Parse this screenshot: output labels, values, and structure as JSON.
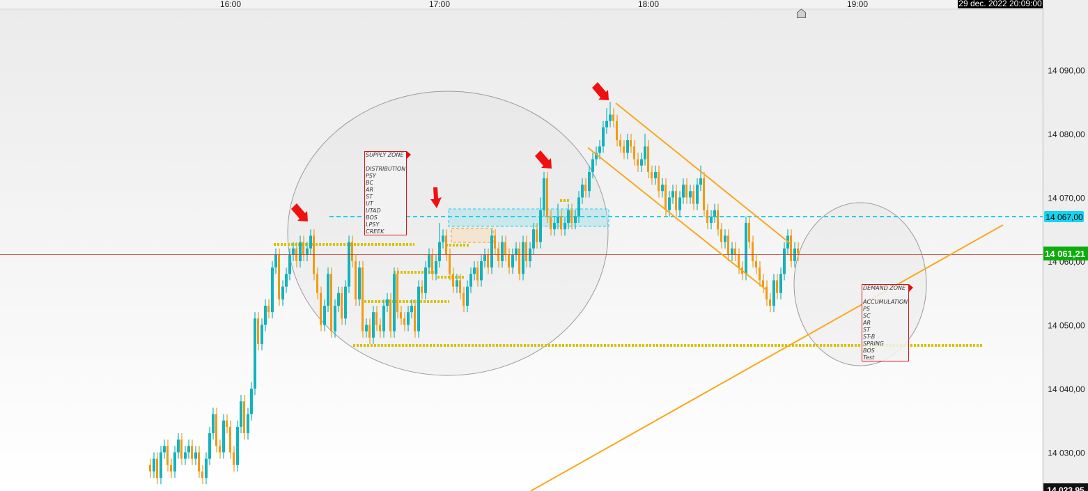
{
  "header": {
    "datetime_label": "29 dec. 2022 20:09:00"
  },
  "colors": {
    "up_candle": "#12b3bd",
    "down_candle": "#f29a12",
    "price_line": "#d22a1e",
    "current_price_bg": "#0aad0a",
    "level_bg": "#16d4f0",
    "level_line": "#16d4f0",
    "channel_lines": "#fca61c",
    "support_dotted": "#d8c000",
    "arrows": "#f01010",
    "zone_box_border": "#e01010"
  },
  "chart_data": {
    "type": "candlestick",
    "interval": "1 minute",
    "first_candle_time": "15:37",
    "x_tick_labels": [
      "16:00",
      "17:00",
      "18:00",
      "19:00"
    ],
    "y_tick_labels": [
      "14 090,00",
      "14 080,00",
      "14 070,00",
      "14 060,00",
      "14 050,00",
      "14 040,00",
      "14 030,00"
    ],
    "y_ticks": [
      14090,
      14080,
      14070,
      14060,
      14050,
      14040,
      14030
    ],
    "ylim": [
      14023.95,
      14101
    ],
    "x_range": [
      "15:34",
      "20:09"
    ],
    "grid": false,
    "current_price": 14061.21,
    "current_price_label": "14 061,21",
    "level_price": 14067.0,
    "level_label": "14 067,00",
    "bottom_price_label": "14 023,95",
    "candles_ohlc": [
      [
        14028,
        14029,
        14026,
        14027
      ],
      [
        14027,
        14030,
        14026,
        14029
      ],
      [
        14029,
        14030,
        14025,
        14026
      ],
      [
        14026,
        14031,
        14025,
        14030
      ],
      [
        14030,
        14032,
        14029,
        14031
      ],
      [
        14031,
        14032,
        14027,
        14028
      ],
      [
        14028,
        14029,
        14026,
        14027
      ],
      [
        14027,
        14031,
        14026,
        14030
      ],
      [
        14030,
        14033,
        14029,
        14032
      ],
      [
        14032,
        14033,
        14028,
        14029
      ],
      [
        14029,
        14031,
        14028,
        14030
      ],
      [
        14030,
        14032,
        14029,
        14031
      ],
      [
        14031,
        14032,
        14028,
        14029
      ],
      [
        14029,
        14031,
        14028,
        14030
      ],
      [
        14030,
        14031,
        14026,
        14027
      ],
      [
        14027,
        14028,
        14025,
        14026
      ],
      [
        14026,
        14030,
        14025,
        14029
      ],
      [
        14029,
        14034,
        14028,
        14033
      ],
      [
        14033,
        14037,
        14032,
        14036
      ],
      [
        14036,
        14037,
        14030,
        14031
      ],
      [
        14031,
        14032,
        14029,
        14030
      ],
      [
        14030,
        14036,
        14029,
        14035
      ],
      [
        14035,
        14036,
        14033,
        14034
      ],
      [
        14034,
        14035,
        14029,
        14030
      ],
      [
        14030,
        14031,
        14027,
        14028
      ],
      [
        14028,
        14035,
        14027,
        14034
      ],
      [
        14034,
        14039,
        14033,
        14038
      ],
      [
        14038,
        14039,
        14032,
        14033
      ],
      [
        14033,
        14037,
        14032,
        14036
      ],
      [
        14036,
        14041,
        14035,
        14040
      ],
      [
        14040,
        14052,
        14039,
        14051
      ],
      [
        14051,
        14052,
        14046,
        14047
      ],
      [
        14047,
        14051,
        14046,
        14050
      ],
      [
        14050,
        14054,
        14049,
        14053
      ],
      [
        14053,
        14054,
        14051,
        14052
      ],
      [
        14052,
        14060,
        14051,
        14059
      ],
      [
        14059,
        14062,
        14058,
        14061
      ],
      [
        14061,
        14062,
        14053,
        14054
      ],
      [
        14054,
        14057,
        14053,
        14056
      ],
      [
        14056,
        14059,
        14055,
        14058
      ],
      [
        14058,
        14062,
        14057,
        14061
      ],
      [
        14061,
        14063,
        14060,
        14062
      ],
      [
        14062,
        14063,
        14059,
        14060
      ],
      [
        14060,
        14064,
        14059,
        14063
      ],
      [
        14063,
        14064,
        14060,
        14061
      ],
      [
        14061,
        14063,
        14060,
        14062
      ],
      [
        14062,
        14065,
        14061,
        14064
      ],
      [
        14064,
        14065,
        14057,
        14058
      ],
      [
        14058,
        14059,
        14054,
        14055
      ],
      [
        14055,
        14056,
        14049,
        14050
      ],
      [
        14050,
        14054,
        14049,
        14053
      ],
      [
        14053,
        14059,
        14052,
        14058
      ],
      [
        14058,
        14059,
        14048,
        14049
      ],
      [
        14049,
        14054,
        14048,
        14053
      ],
      [
        14053,
        14056,
        14052,
        14055
      ],
      [
        14055,
        14056,
        14050,
        14051
      ],
      [
        14051,
        14057,
        14050,
        14056
      ],
      [
        14056,
        14064,
        14055,
        14063
      ],
      [
        14063,
        14064,
        14059,
        14060
      ],
      [
        14060,
        14061,
        14053,
        14054
      ],
      [
        14054,
        14060,
        14053,
        14059
      ],
      [
        14059,
        14060,
        14048,
        14049
      ],
      [
        14049,
        14051,
        14048,
        14050
      ],
      [
        14050,
        14051,
        14047,
        14048
      ],
      [
        14048,
        14053,
        14047,
        14052
      ],
      [
        14052,
        14053,
        14049,
        14050
      ],
      [
        14050,
        14051,
        14048,
        14049
      ],
      [
        14049,
        14054,
        14048,
        14053
      ],
      [
        14053,
        14055,
        14052,
        14054
      ],
      [
        14054,
        14055,
        14048,
        14049
      ],
      [
        14049,
        14059,
        14048,
        14058
      ],
      [
        14058,
        14059,
        14051,
        14052
      ],
      [
        14052,
        14053,
        14050,
        14051
      ],
      [
        14051,
        14052,
        14049,
        14050
      ],
      [
        14050,
        14053,
        14049,
        14052
      ],
      [
        14052,
        14054,
        14051,
        14053
      ],
      [
        14053,
        14054,
        14048,
        14049
      ],
      [
        14049,
        14057,
        14048,
        14056
      ],
      [
        14056,
        14057,
        14054,
        14055
      ],
      [
        14055,
        14060,
        14054,
        14059
      ],
      [
        14059,
        14062,
        14058,
        14061
      ],
      [
        14061,
        14062,
        14057,
        14058
      ],
      [
        14058,
        14061,
        14057,
        14060
      ],
      [
        14060,
        14066,
        14059,
        14063
      ],
      [
        14063,
        14065,
        14062,
        14064
      ],
      [
        14064,
        14065,
        14060,
        14061
      ],
      [
        14061,
        14062,
        14057,
        14058
      ],
      [
        14058,
        14059,
        14055,
        14056
      ],
      [
        14056,
        14058,
        14055,
        14057
      ],
      [
        14057,
        14058,
        14054,
        14055
      ],
      [
        14055,
        14056,
        14052,
        14053
      ],
      [
        14053,
        14057,
        14052,
        14056
      ],
      [
        14056,
        14059,
        14055,
        14058
      ],
      [
        14058,
        14060,
        14057,
        14059
      ],
      [
        14059,
        14060,
        14056,
        14057
      ],
      [
        14057,
        14061,
        14056,
        14060
      ],
      [
        14060,
        14062,
        14059,
        14061
      ],
      [
        14061,
        14062,
        14058,
        14059
      ],
      [
        14059,
        14065,
        14058,
        14064
      ],
      [
        14064,
        14065,
        14061,
        14062
      ],
      [
        14062,
        14063,
        14059,
        14060
      ],
      [
        14060,
        14064,
        14059,
        14063
      ],
      [
        14063,
        14064,
        14060,
        14061
      ],
      [
        14061,
        14062,
        14058,
        14059
      ],
      [
        14059,
        14062,
        14058,
        14061
      ],
      [
        14061,
        14063,
        14060,
        14062
      ],
      [
        14062,
        14063,
        14057,
        14058
      ],
      [
        14058,
        14064,
        14057,
        14063
      ],
      [
        14063,
        14064,
        14059,
        14060
      ],
      [
        14060,
        14063,
        14059,
        14062
      ],
      [
        14062,
        14066,
        14061,
        14065
      ],
      [
        14065,
        14066,
        14062,
        14063
      ],
      [
        14063,
        14070,
        14062,
        14068
      ],
      [
        14068,
        14074,
        14067,
        14073
      ],
      [
        14073,
        14074,
        14066,
        14067
      ],
      [
        14067,
        14068,
        14064,
        14065
      ],
      [
        14065,
        14067,
        14064,
        14066
      ],
      [
        14066,
        14069,
        14065,
        14067
      ],
      [
        14067,
        14068,
        14064,
        14065
      ],
      [
        14065,
        14067,
        14064,
        14066
      ],
      [
        14066,
        14069,
        14065,
        14068
      ],
      [
        14068,
        14069,
        14065,
        14066
      ],
      [
        14066,
        14068,
        14065,
        14067
      ],
      [
        14067,
        14071,
        14066,
        14070
      ],
      [
        14070,
        14073,
        14069,
        14072
      ],
      [
        14072,
        14073,
        14070,
        14071
      ],
      [
        14071,
        14075,
        14070,
        14074
      ],
      [
        14074,
        14077,
        14073,
        14076
      ],
      [
        14076,
        14078,
        14075,
        14077
      ],
      [
        14077,
        14079,
        14076,
        14078
      ],
      [
        14078,
        14082,
        14077,
        14081
      ],
      [
        14081,
        14084,
        14080,
        14082
      ],
      [
        14082,
        14085,
        14081,
        14083
      ],
      [
        14083,
        14084,
        14081,
        14082
      ],
      [
        14082,
        14083,
        14078,
        14079
      ],
      [
        14079,
        14080,
        14077,
        14078
      ],
      [
        14078,
        14079,
        14076,
        14077
      ],
      [
        14077,
        14080,
        14076,
        14079
      ],
      [
        14079,
        14080,
        14077,
        14078
      ],
      [
        14078,
        14079,
        14075,
        14076
      ],
      [
        14076,
        14077,
        14074,
        14075
      ],
      [
        14075,
        14077,
        14074,
        14076
      ],
      [
        14076,
        14080,
        14075,
        14078
      ],
      [
        14078,
        14079,
        14073,
        14074
      ],
      [
        14074,
        14075,
        14072,
        14073
      ],
      [
        14073,
        14075,
        14072,
        14074
      ],
      [
        14074,
        14075,
        14070,
        14071
      ],
      [
        14071,
        14073,
        14070,
        14072
      ],
      [
        14072,
        14073,
        14067,
        14068
      ],
      [
        14068,
        14071,
        14067,
        14070
      ],
      [
        14070,
        14072,
        14069,
        14071
      ],
      [
        14071,
        14072,
        14067,
        14068
      ],
      [
        14068,
        14071,
        14067,
        14070
      ],
      [
        14070,
        14073,
        14069,
        14072
      ],
      [
        14072,
        14073,
        14069,
        14070
      ],
      [
        14070,
        14072,
        14069,
        14071
      ],
      [
        14071,
        14072,
        14068,
        14069
      ],
      [
        14069,
        14073,
        14068,
        14072
      ],
      [
        14072,
        14075,
        14071,
        14073
      ],
      [
        14073,
        14074,
        14067,
        14068
      ],
      [
        14068,
        14069,
        14065,
        14066
      ],
      [
        14066,
        14068,
        14065,
        14067
      ],
      [
        14067,
        14069,
        14066,
        14068
      ],
      [
        14068,
        14069,
        14064,
        14065
      ],
      [
        14065,
        14066,
        14062,
        14063
      ],
      [
        14063,
        14065,
        14062,
        14064
      ],
      [
        14064,
        14065,
        14060,
        14061
      ],
      [
        14061,
        14063,
        14060,
        14062
      ],
      [
        14062,
        14063,
        14060,
        14061
      ],
      [
        14061,
        14062,
        14058,
        14059
      ],
      [
        14059,
        14060,
        14057,
        14058
      ],
      [
        14058,
        14067,
        14057,
        14066
      ],
      [
        14066,
        14067,
        14062,
        14063
      ],
      [
        14063,
        14064,
        14059,
        14060
      ],
      [
        14060,
        14061,
        14058,
        14059
      ],
      [
        14059,
        14060,
        14056,
        14057
      ],
      [
        14057,
        14058,
        14055,
        14056
      ],
      [
        14056,
        14057,
        14053,
        14054
      ],
      [
        14054,
        14055,
        14052,
        14053
      ],
      [
        14053,
        14058,
        14052,
        14057
      ],
      [
        14057,
        14058,
        14054,
        14055
      ],
      [
        14055,
        14059,
        14054,
        14058
      ],
      [
        14058,
        14063,
        14057,
        14062
      ],
      [
        14062,
        14065,
        14061,
        14064
      ],
      [
        14064,
        14065,
        14059,
        14060
      ],
      [
        14060,
        14063,
        14059,
        14062
      ],
      [
        14062,
        14063,
        14060,
        14061.21
      ]
    ]
  },
  "annotations": {
    "supply_zone": {
      "title": "SUPPLY ZONE",
      "lines": [
        "",
        "DISTRIBUTION",
        "PSY",
        "BC",
        "AR",
        "ST",
        "UT",
        "UTAD",
        "BOS",
        "LPSY",
        "CREEK"
      ]
    },
    "demand_zone": {
      "title": "DEMAND ZONE",
      "lines": [
        "",
        "ACCUMULATION",
        "PS",
        "SC",
        "AR",
        "ST",
        "ST-B",
        "SPRING",
        "BOS",
        "Test"
      ]
    },
    "icons": [
      "home-marker-icon",
      "arrow-down-right-icon",
      "arrow-down-icon"
    ]
  }
}
